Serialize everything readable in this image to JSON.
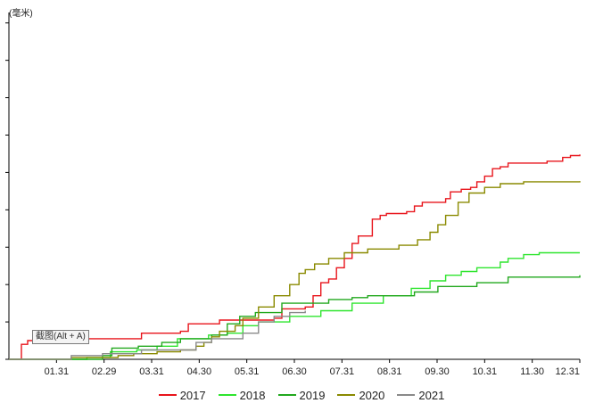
{
  "chart_data": {
    "type": "line",
    "unit_label": "(毫米)",
    "x_tick_labels": [
      "01.31",
      "02.29",
      "03.31",
      "04.30",
      "05.31",
      "06.30",
      "07.31",
      "08.31",
      "09.30",
      "10.31",
      "11.30",
      "12.31"
    ],
    "xlim": [
      0,
      366
    ],
    "ylim": [
      0,
      928
    ],
    "y_grid_step": 100,
    "grid": false,
    "legend_position": "bottom",
    "series": [
      {
        "name": "2017",
        "color": "#e8141b",
        "points": [
          [
            0,
            0
          ],
          [
            4,
            0
          ],
          [
            8,
            40
          ],
          [
            12,
            50
          ],
          [
            16,
            50
          ],
          [
            25,
            50
          ],
          [
            30,
            55
          ],
          [
            80,
            55
          ],
          [
            85,
            70
          ],
          [
            110,
            75
          ],
          [
            115,
            95
          ],
          [
            130,
            95
          ],
          [
            135,
            105
          ],
          [
            170,
            110
          ],
          [
            175,
            135
          ],
          [
            190,
            140
          ],
          [
            195,
            170
          ],
          [
            200,
            205
          ],
          [
            205,
            215
          ],
          [
            210,
            245
          ],
          [
            215,
            270
          ],
          [
            220,
            310
          ],
          [
            224,
            330
          ],
          [
            228,
            330
          ],
          [
            233,
            375
          ],
          [
            238,
            385
          ],
          [
            242,
            390
          ],
          [
            255,
            395
          ],
          [
            260,
            410
          ],
          [
            265,
            420
          ],
          [
            280,
            430
          ],
          [
            283,
            448
          ],
          [
            290,
            455
          ],
          [
            296,
            460
          ],
          [
            300,
            475
          ],
          [
            305,
            490
          ],
          [
            310,
            510
          ],
          [
            315,
            515
          ],
          [
            320,
            525
          ],
          [
            330,
            525
          ],
          [
            345,
            530
          ],
          [
            355,
            540
          ],
          [
            360,
            545
          ],
          [
            366,
            548
          ]
        ]
      },
      {
        "name": "2018",
        "color": "#2ee52e",
        "points": [
          [
            0,
            0
          ],
          [
            40,
            0
          ],
          [
            50,
            5
          ],
          [
            65,
            20
          ],
          [
            82,
            25
          ],
          [
            95,
            35
          ],
          [
            108,
            55
          ],
          [
            128,
            65
          ],
          [
            140,
            70
          ],
          [
            150,
            90
          ],
          [
            160,
            100
          ],
          [
            180,
            115
          ],
          [
            200,
            130
          ],
          [
            220,
            150
          ],
          [
            240,
            170
          ],
          [
            258,
            190
          ],
          [
            270,
            210
          ],
          [
            280,
            225
          ],
          [
            290,
            235
          ],
          [
            300,
            245
          ],
          [
            315,
            260
          ],
          [
            320,
            270
          ],
          [
            330,
            280
          ],
          [
            340,
            285
          ],
          [
            366,
            285
          ]
        ]
      },
      {
        "name": "2019",
        "color": "#22a81e",
        "points": [
          [
            0,
            0
          ],
          [
            42,
            0
          ],
          [
            60,
            10
          ],
          [
            66,
            30
          ],
          [
            83,
            35
          ],
          [
            98,
            45
          ],
          [
            110,
            55
          ],
          [
            130,
            65
          ],
          [
            140,
            95
          ],
          [
            148,
            115
          ],
          [
            158,
            125
          ],
          [
            175,
            150
          ],
          [
            205,
            160
          ],
          [
            220,
            165
          ],
          [
            230,
            170
          ],
          [
            260,
            180
          ],
          [
            275,
            195
          ],
          [
            300,
            205
          ],
          [
            320,
            220
          ],
          [
            340,
            220
          ],
          [
            366,
            225
          ]
        ]
      },
      {
        "name": "2020",
        "color": "#8a8a00",
        "points": [
          [
            0,
            0
          ],
          [
            30,
            0
          ],
          [
            40,
            5
          ],
          [
            70,
            10
          ],
          [
            80,
            15
          ],
          [
            95,
            20
          ],
          [
            110,
            25
          ],
          [
            120,
            35
          ],
          [
            125,
            45
          ],
          [
            130,
            60
          ],
          [
            135,
            75
          ],
          [
            145,
            90
          ],
          [
            150,
            110
          ],
          [
            160,
            140
          ],
          [
            170,
            170
          ],
          [
            180,
            200
          ],
          [
            186,
            230
          ],
          [
            190,
            240
          ],
          [
            196,
            255
          ],
          [
            205,
            270
          ],
          [
            215,
            285
          ],
          [
            230,
            295
          ],
          [
            250,
            305
          ],
          [
            262,
            320
          ],
          [
            270,
            340
          ],
          [
            275,
            360
          ],
          [
            280,
            385
          ],
          [
            288,
            420
          ],
          [
            295,
            445
          ],
          [
            305,
            460
          ],
          [
            315,
            470
          ],
          [
            330,
            475
          ],
          [
            366,
            477
          ]
        ]
      },
      {
        "name": "2021",
        "color": "#8a8a8a",
        "points": [
          [
            0,
            0
          ],
          [
            38,
            0
          ],
          [
            40,
            10
          ],
          [
            60,
            15
          ],
          [
            85,
            25
          ],
          [
            120,
            45
          ],
          [
            130,
            55
          ],
          [
            150,
            70
          ],
          [
            160,
            100
          ],
          [
            170,
            115
          ],
          [
            180,
            125
          ],
          [
            190,
            130
          ]
        ]
      }
    ]
  }
}
